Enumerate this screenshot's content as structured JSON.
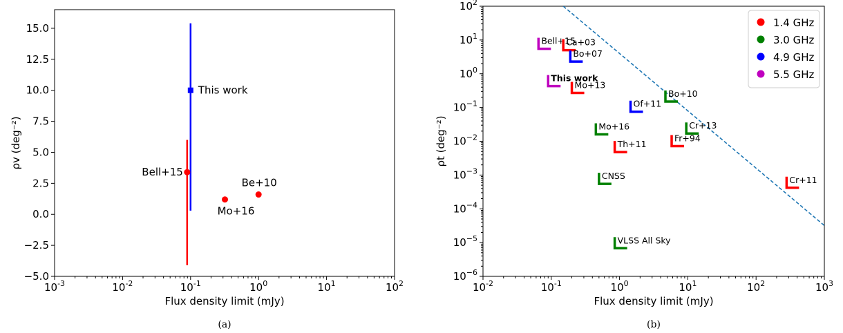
{
  "charts": [
    {
      "id": "a",
      "caption": "(a)",
      "chart_data": {
        "type": "scatter",
        "xlabel": "Flux density limit (mJy)",
        "ylabel": "ρv (deg⁻²)",
        "x_scale": "log",
        "y_scale": "linear",
        "xlim": [
          0.001,
          100
        ],
        "ylim": [
          -5.0,
          16.5
        ],
        "xticks": [
          0.001,
          0.01,
          0.1,
          1,
          10,
          100
        ],
        "yticks": [
          -5.0,
          -2.5,
          0.0,
          2.5,
          5.0,
          7.5,
          10.0,
          12.5,
          15.0
        ],
        "ytick_labels": [
          "−5.0",
          "−2.5",
          "0.0",
          "2.5",
          "5.0",
          "7.5",
          "10.0",
          "12.5",
          "15.0"
        ],
        "grid": false,
        "points": [
          {
            "label": "This work",
            "x": 0.1,
            "y": 10.0,
            "yerr_low": 0.3,
            "yerr_high": 15.4,
            "color": "#0000ff",
            "marker": "square"
          },
          {
            "label": "Bell+15",
            "x": 0.089,
            "y": 3.4,
            "yerr_low": -4.1,
            "yerr_high": 6.0,
            "color": "#ff0000",
            "marker": "circle"
          },
          {
            "label": "Mo+16",
            "x": 0.32,
            "y": 1.2,
            "color": "#ff0000",
            "marker": "circle"
          },
          {
            "label": "Be+10",
            "x": 1.0,
            "y": 1.6,
            "color": "#ff0000",
            "marker": "circle"
          }
        ]
      }
    },
    {
      "id": "b",
      "caption": "(b)",
      "chart_data": {
        "type": "scatter",
        "xlabel": "Flux density limit (mJy)",
        "ylabel": "ρt (deg⁻²)",
        "x_scale": "log",
        "y_scale": "log",
        "xlim": [
          0.01,
          1000
        ],
        "ylim": [
          1e-06,
          100
        ],
        "xticks": [
          0.01,
          0.1,
          1,
          10,
          100,
          1000
        ],
        "yticks": [
          1e-06,
          1e-05,
          0.0001,
          0.001,
          0.01,
          0.1,
          1,
          10,
          100
        ],
        "grid": false,
        "legend": {
          "location": "top-right",
          "entries": [
            {
              "label": "1.4 GHz",
              "color": "#ff0000"
            },
            {
              "label": "3.0 GHz",
              "color": "#008000"
            },
            {
              "label": "4.9 GHz",
              "color": "#0000ff"
            },
            {
              "label": "5.5 GHz",
              "color": "#bf00bf"
            }
          ]
        },
        "limit_markers": [
          {
            "label": "Bell+15",
            "x": 0.065,
            "y": 5.5,
            "color": "#bf00bf"
          },
          {
            "label": "Ca+03",
            "x": 0.15,
            "y": 5.0,
            "color": "#ff0000"
          },
          {
            "label": "Bo+07",
            "x": 0.19,
            "y": 2.3,
            "color": "#0000ff"
          },
          {
            "label": "This work",
            "x": 0.09,
            "y": 0.43,
            "color": "#bf00bf",
            "bold": true
          },
          {
            "label": "Mo+13",
            "x": 0.2,
            "y": 0.27,
            "color": "#ff0000"
          },
          {
            "label": "Bo+10",
            "x": 4.7,
            "y": 0.15,
            "color": "#008000"
          },
          {
            "label": "Of+11",
            "x": 1.45,
            "y": 0.075,
            "color": "#0000ff"
          },
          {
            "label": "Mo+16",
            "x": 0.45,
            "y": 0.016,
            "color": "#008000"
          },
          {
            "label": "Cr+13",
            "x": 9.5,
            "y": 0.017,
            "color": "#008000"
          },
          {
            "label": "Fr+94",
            "x": 5.8,
            "y": 0.0072,
            "color": "#ff0000"
          },
          {
            "label": "Th+11",
            "x": 0.85,
            "y": 0.0048,
            "color": "#ff0000"
          },
          {
            "label": "CNSS",
            "x": 0.5,
            "y": 0.00055,
            "color": "#008000"
          },
          {
            "label": "Cr+11",
            "x": 280,
            "y": 0.00042,
            "color": "#ff0000"
          },
          {
            "label": "VLSS All Sky",
            "x": 0.85,
            "y": 6.8e-06,
            "color": "#008000"
          }
        ],
        "lines": [
          {
            "style": "dashed",
            "color": "#1f77b4",
            "points": [
              [
                0.15,
                100
              ],
              [
                1000,
                3.2e-05
              ]
            ]
          }
        ]
      }
    }
  ]
}
